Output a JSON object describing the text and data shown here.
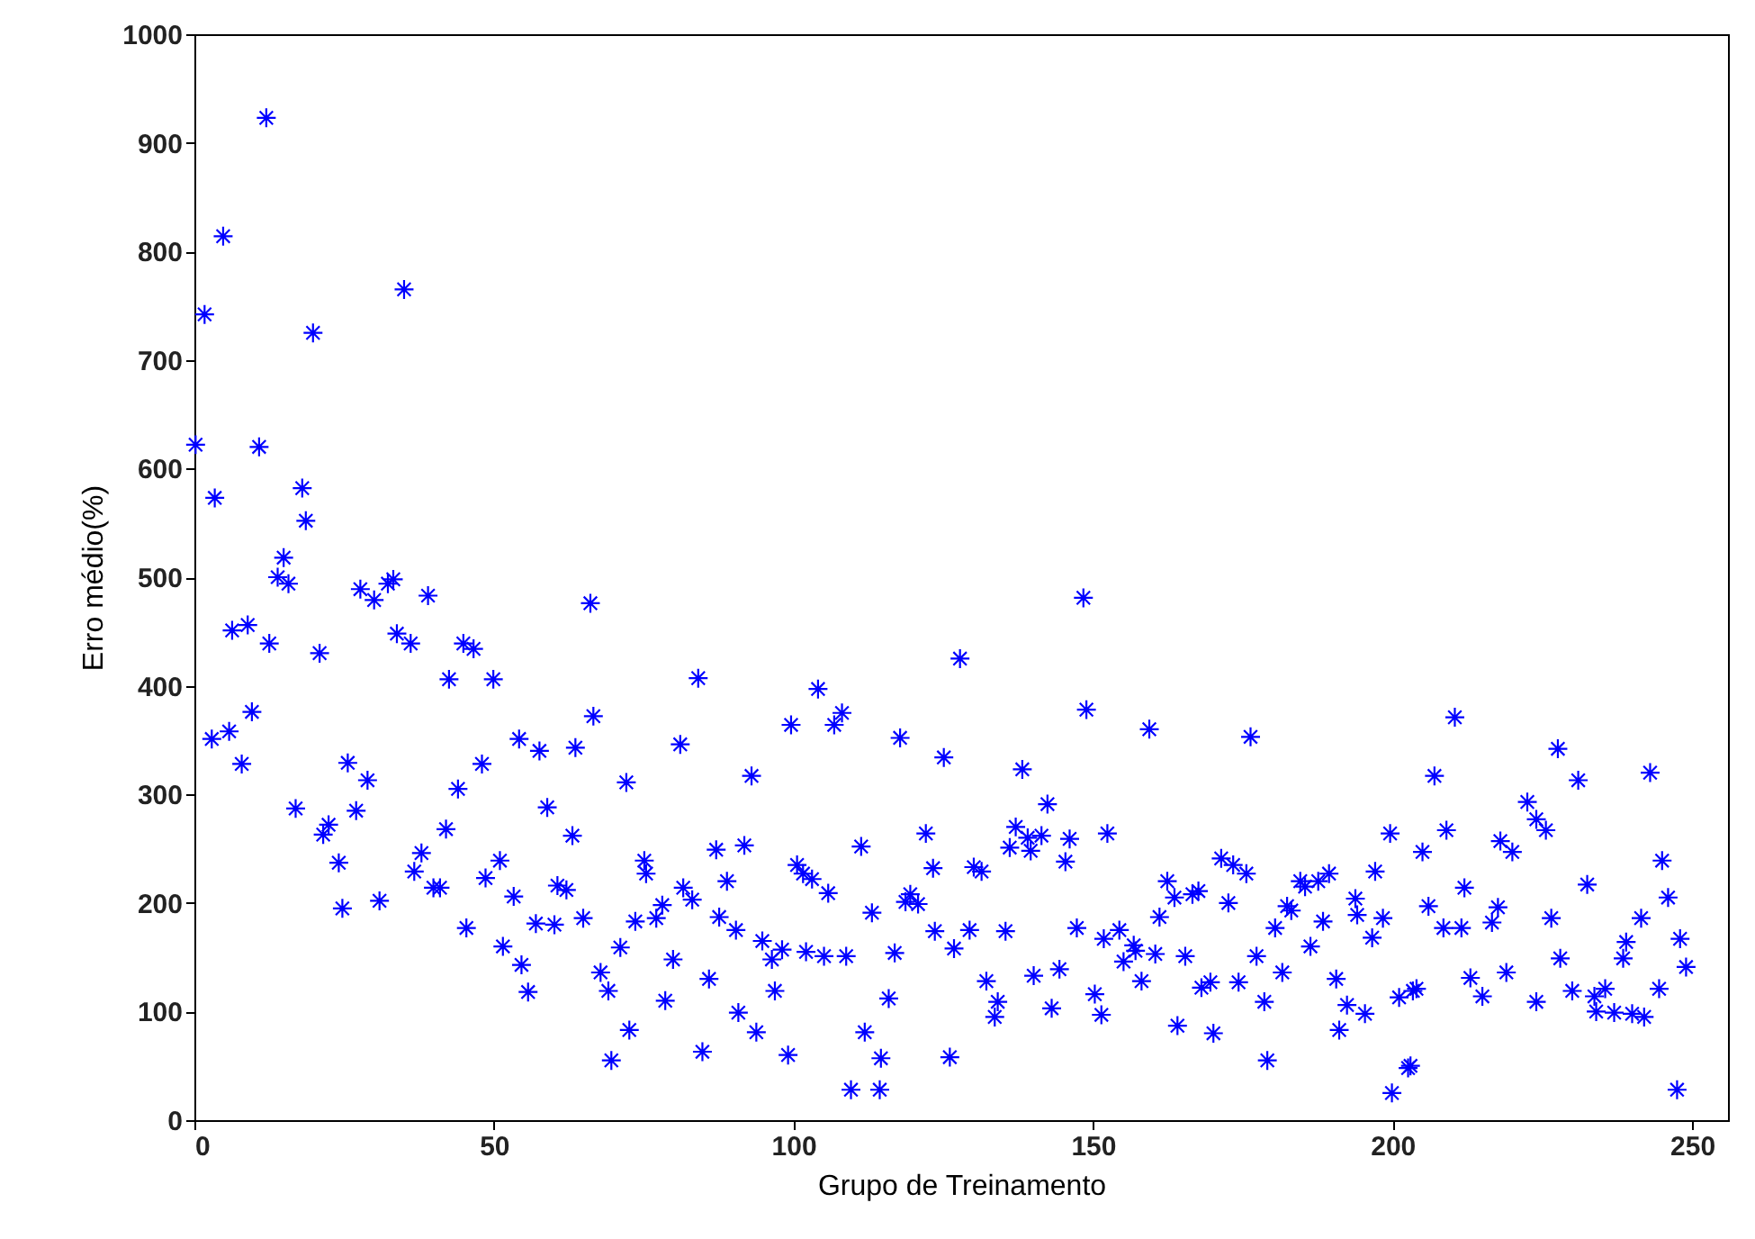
{
  "chart_data": {
    "type": "scatter",
    "xlabel": "Grupo de Treinamento",
    "ylabel": "Erro médio(%)",
    "xlim": [
      0,
      256
    ],
    "ylim": [
      0,
      1000
    ],
    "xticks": [
      0,
      50,
      100,
      150,
      200,
      250
    ],
    "yticks": [
      0,
      100,
      200,
      300,
      400,
      500,
      600,
      700,
      800,
      900,
      1000
    ],
    "grid": false,
    "marker": "cross",
    "series": [
      {
        "color": "#0000ff",
        "x": [
          12,
          4.8,
          1.7,
          19.8,
          35,
          0.2,
          10.8,
          3.4,
          18,
          18.6,
          14.9,
          13.9,
          15.7,
          27.7,
          30,
          32.3,
          33.2,
          39,
          6.3,
          8.9,
          12.5,
          20.9,
          33.8,
          36.1,
          44.9,
          46.6,
          42.5,
          49.9,
          2.9,
          5.8,
          9.6,
          7.9,
          25.6,
          28.9,
          16.9,
          22.4,
          21.5,
          27,
          24.1,
          24.7,
          30.9,
          54.2,
          48,
          44,
          42,
          37.9,
          36.7,
          39.9,
          41,
          51,
          48.6,
          53.3,
          45.4,
          51.5,
          54.6,
          55.7,
          57,
          66.1,
          84.1,
          66.6,
          99.6,
          57.6,
          63.6,
          81.1,
          72.1,
          93,
          58.9,
          63.1,
          75.1,
          75.4,
          87.1,
          91.8,
          88.9,
          100.6,
          101.6,
          60.6,
          62.1,
          60.1,
          64.9,
          81.6,
          83.1,
          78.1,
          73.6,
          77.1,
          87.6,
          90.4,
          94.8,
          96.4,
          98.1,
          102.1,
          71.1,
          67.8,
          69.1,
          79.9,
          85.9,
          78.6,
          96.9,
          72.6,
          90.8,
          93.8,
          69.6,
          84.8,
          99.1,
          148.4,
          127.8,
          104.1,
          108.1,
          106.8,
          148.9,
          117.8,
          125.1,
          138.2,
          142.4,
          137.1,
          139.1,
          141.4,
          146.1,
          136.1,
          139.6,
          145.4,
          152.4,
          122.1,
          111.3,
          123.3,
          130.1,
          131.4,
          103.1,
          105.8,
          119.5,
          118.7,
          120.8,
          113.1,
          123.6,
          129.4,
          126.8,
          135.4,
          147.3,
          151.8,
          105.1,
          108.8,
          116.9,
          115.9,
          132.2,
          134.1,
          133.6,
          140.1,
          144.4,
          143.1,
          150.3,
          151.4,
          111.9,
          114.6,
          126.1,
          109.6,
          114.4,
          159.4,
          176.3,
          199.6,
          171.4,
          173.4,
          175.6,
          162.4,
          163.6,
          166.6,
          167.6,
          172.6,
          161.1,
          184.6,
          185.4,
          187.6,
          189.4,
          197.1,
          182.4,
          183.1,
          180.4,
          188.4,
          193.8,
          194.1,
          198.4,
          196.6,
          154.4,
          156.8,
          157.1,
          160.4,
          155.1,
          165.4,
          177.3,
          186.3,
          158.1,
          168.1,
          169.6,
          174.3,
          181.6,
          178.6,
          190.6,
          192.4,
          195.4,
          191.1,
          164.1,
          170.1,
          179.1,
          199.9,
          202.6,
          201.1,
          203.4,
          210.4,
          227.6,
          207,
          231,
          243,
          209,
          205,
          218,
          220,
          222.5,
          224,
          225.6,
          245,
          246,
          212,
          206,
          208.5,
          211.5,
          216.6,
          217.6,
          226.5,
          232.5,
          241.5,
          239,
          238.5,
          248,
          249,
          228,
          219,
          213,
          215,
          204,
          224,
          230,
          233.7,
          235.5,
          237,
          240,
          242,
          234,
          244.5,
          247.5,
          203
        ],
        "values": [
          923,
          814,
          742,
          725,
          765,
          622,
          620,
          573,
          582,
          552,
          518,
          500,
          494,
          489,
          479,
          494,
          498,
          483,
          451,
          456,
          439,
          430,
          448,
          439,
          439,
          434,
          406,
          406,
          351,
          358,
          376,
          328,
          329,
          313,
          287,
          272,
          263,
          285,
          237,
          195,
          202,
          351,
          328,
          305,
          268,
          246,
          229,
          214,
          214,
          239,
          223,
          206,
          177,
          160,
          143,
          118,
          181,
          476,
          407,
          372,
          364,
          340,
          343,
          346,
          311,
          317,
          288,
          262,
          239,
          227,
          249,
          253,
          220,
          235,
          227,
          216,
          212,
          180,
          186,
          214,
          203,
          198,
          183,
          186,
          187,
          175,
          165,
          148,
          157,
          155,
          159,
          136,
          119,
          148,
          130,
          110,
          119,
          83,
          99,
          81,
          55,
          63,
          60,
          481,
          425,
          397,
          375,
          364,
          378,
          352,
          334,
          323,
          291,
          270,
          260,
          262,
          259,
          251,
          248,
          238,
          264,
          264,
          252,
          232,
          233,
          229,
          222,
          209,
          208,
          201,
          199,
          191,
          174,
          175,
          158,
          174,
          177,
          167,
          151,
          151,
          154,
          112,
          128,
          109,
          95,
          133,
          139,
          103,
          116,
          97,
          81,
          57,
          58,
          28,
          28,
          360,
          353,
          264,
          241,
          235,
          227,
          220,
          205,
          208,
          211,
          200,
          187,
          220,
          215,
          220,
          227,
          229,
          197,
          193,
          177,
          183,
          204,
          189,
          186,
          168,
          175,
          161,
          156,
          153,
          146,
          151,
          151,
          160,
          128,
          122,
          127,
          127,
          136,
          109,
          130,
          106,
          98,
          83,
          87,
          80,
          55,
          25,
          48,
          113,
          119,
          371,
          342,
          317,
          313,
          320,
          267,
          247,
          257,
          247,
          293,
          277,
          267,
          239,
          205,
          214,
          197,
          177,
          177,
          182,
          196,
          186,
          217,
          186,
          164,
          149,
          167,
          141,
          149,
          136,
          131,
          114,
          121,
          109,
          119,
          114,
          121,
          99,
          98,
          95,
          100,
          121,
          28,
          50
        ]
      }
    ]
  }
}
